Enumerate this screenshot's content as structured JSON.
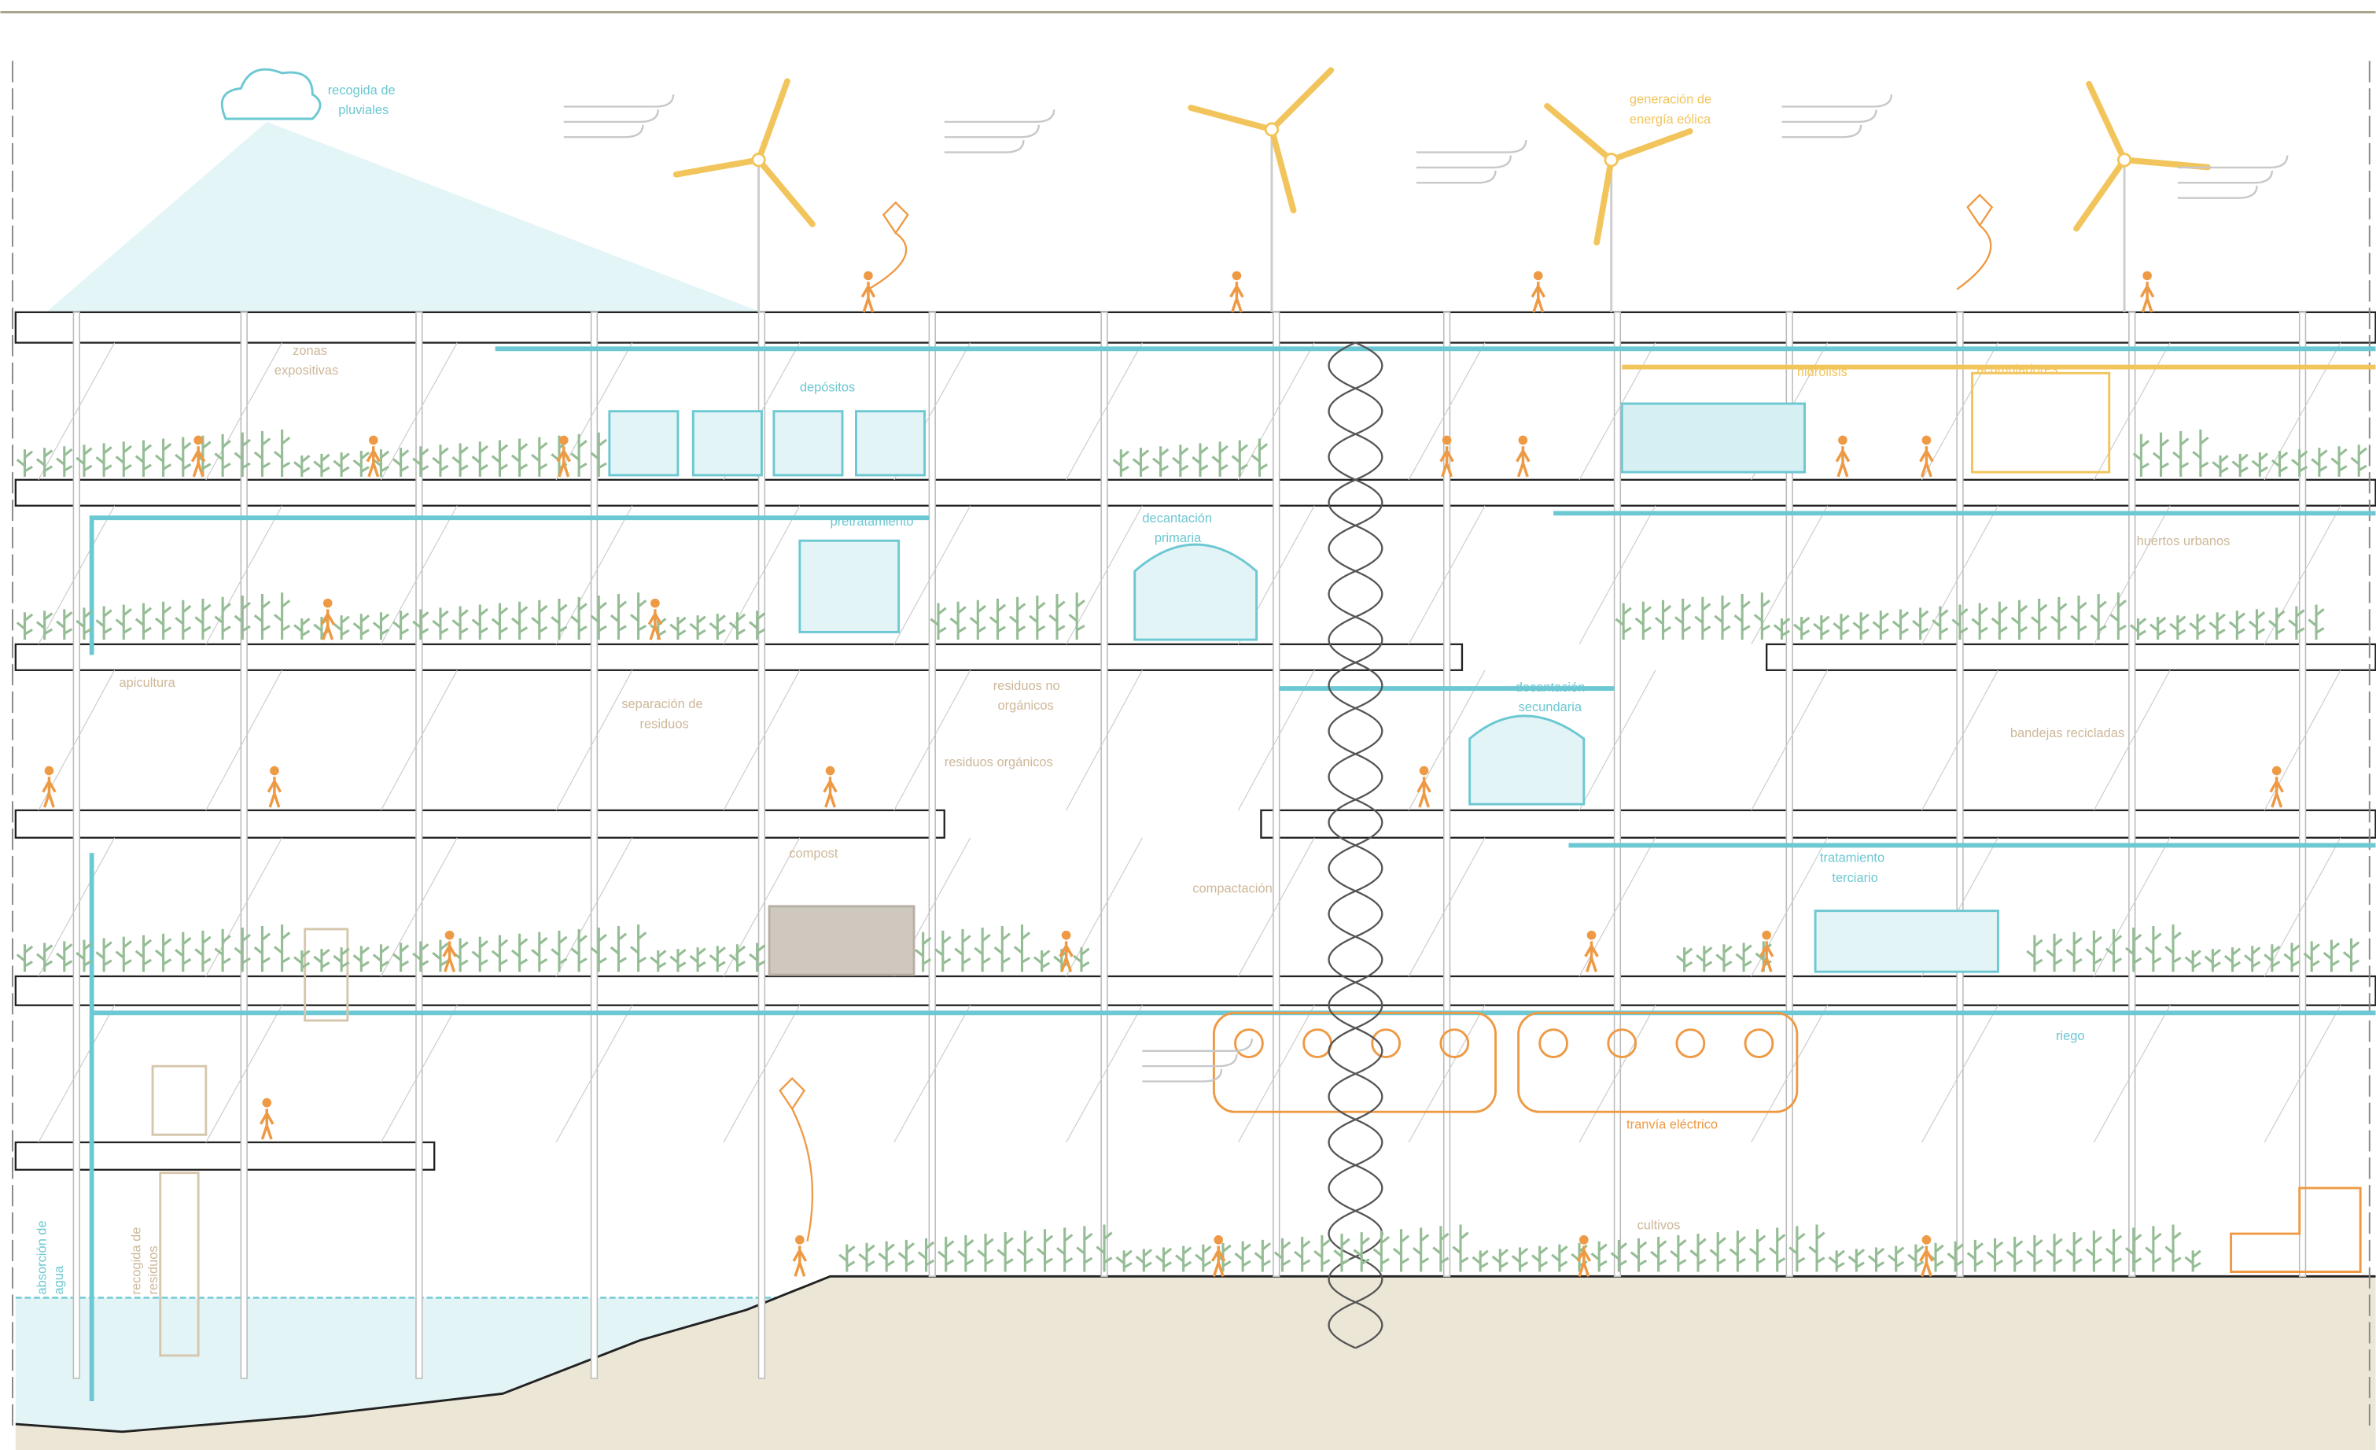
{
  "labels": {
    "rain_collection": [
      "recogida de",
      "pluviales"
    ],
    "wind_energy": [
      "generación de",
      "energía eólica"
    ],
    "exhibition": [
      "zonas",
      "expositivas"
    ],
    "tanks": [
      "depósitos"
    ],
    "hydrolysis": [
      "hidrólisis"
    ],
    "accumulators": [
      "acumuladores"
    ],
    "pretreatment": [
      "pretratamiento"
    ],
    "primary_settling": [
      "decantación",
      "primaria"
    ],
    "urban_gardens": [
      "huertos urbanos"
    ],
    "beekeeping": [
      "apicultura"
    ],
    "waste_separation": [
      "separación de",
      "residuos"
    ],
    "inorganic_waste": [
      "residuos no",
      "orgánicos"
    ],
    "organic_waste": [
      "residuos orgánicos"
    ],
    "secondary_settling": [
      "decantación",
      "secundaria"
    ],
    "recycled_trays": [
      "bandejas recicladas"
    ],
    "compost": [
      "compost"
    ],
    "compaction": [
      "compactación"
    ],
    "tertiary_treatment": [
      "tratamiento",
      "terciario"
    ],
    "irrigation": [
      "riego"
    ],
    "electric_tram": [
      "tranvía eléctrico"
    ],
    "crops": [
      "cultivos"
    ],
    "water_absorption": [
      "absorción de",
      "agua"
    ],
    "waste_collection": [
      "recogida de",
      "residuos"
    ]
  }
}
